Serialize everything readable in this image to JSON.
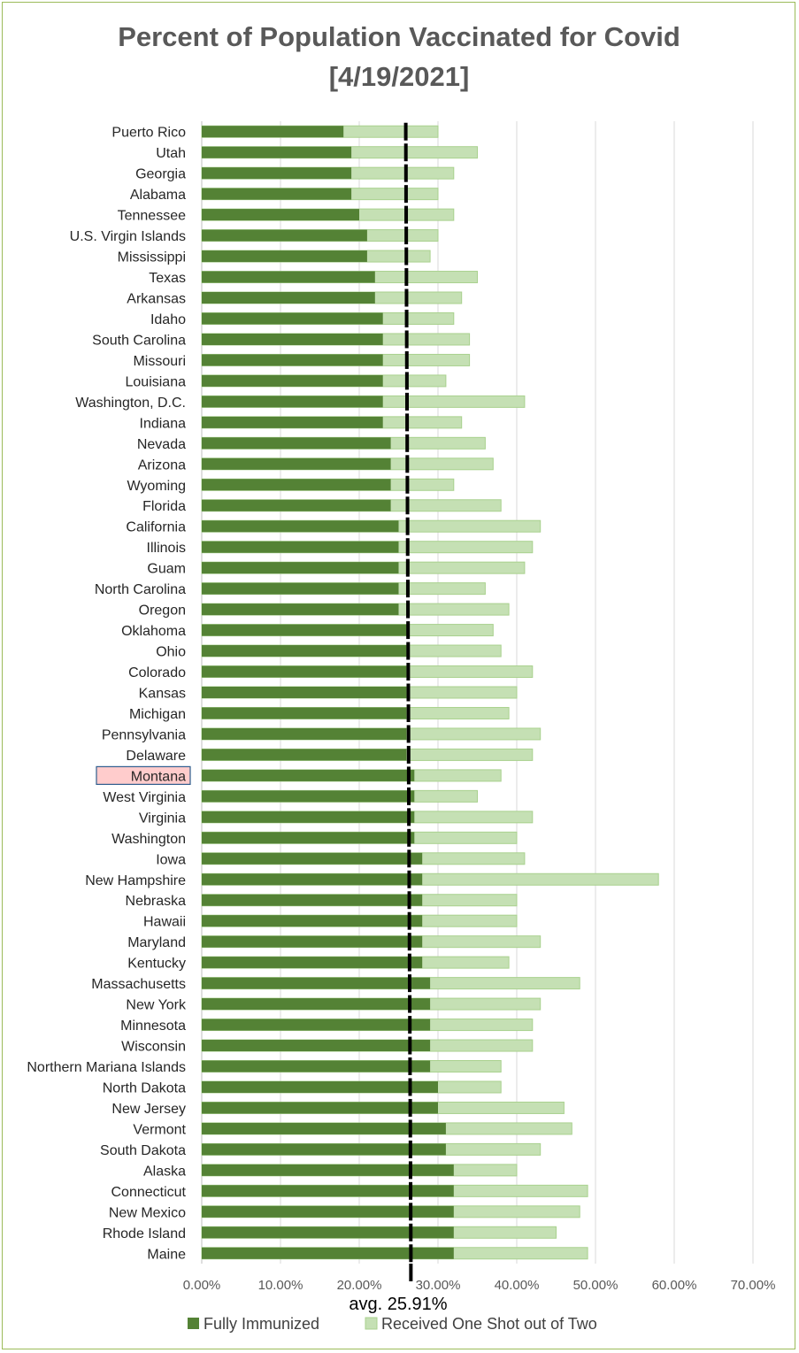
{
  "chart_data": {
    "type": "bar",
    "orientation": "horizontal",
    "stacked": "overlay",
    "title_line1": "Percent of Population Vaccinated for Covid",
    "title_line2": "[4/19/2021]",
    "categories": [
      "Puerto Rico",
      "Utah",
      "Georgia",
      "Alabama",
      "Tennessee",
      "U.S. Virgin Islands",
      "Mississippi",
      "Texas",
      "Arkansas",
      "Idaho",
      "South Carolina",
      "Missouri",
      "Louisiana",
      "Washington, D.C.",
      "Indiana",
      "Nevada",
      "Arizona",
      "Wyoming",
      "Florida",
      "California",
      "Illinois",
      "Guam",
      "North Carolina",
      "Oregon",
      "Oklahoma",
      "Ohio",
      "Colorado",
      "Kansas",
      "Michigan",
      "Pennsylvania",
      "Delaware",
      "Montana",
      "West Virginia",
      "Virginia",
      "Washington",
      "Iowa",
      "New Hampshire",
      "Nebraska",
      "Hawaii",
      "Maryland",
      "Kentucky",
      "Massachusetts",
      "New York",
      "Minnesota",
      "Wisconsin",
      "Northern Mariana Islands",
      "North Dakota",
      "New Jersey",
      "Vermont",
      "South Dakota",
      "Alaska",
      "Connecticut",
      "New Mexico",
      "Rhode Island",
      "Maine"
    ],
    "series": [
      {
        "name": "Fully Immunized",
        "color": "#548235",
        "values": [
          18,
          19,
          19,
          19,
          20,
          21,
          21,
          22,
          22,
          23,
          23,
          23,
          23,
          23,
          23,
          24,
          24,
          24,
          24,
          25,
          25,
          25,
          25,
          25,
          26,
          26,
          26,
          26,
          26,
          26,
          26,
          27,
          27,
          27,
          27,
          28,
          28,
          28,
          28,
          28,
          28,
          29,
          29,
          29,
          29,
          29,
          30,
          30,
          31,
          31,
          32,
          32,
          32,
          32,
          32
        ]
      },
      {
        "name": "Received One Shot out of Two",
        "color": "#c5e0b4",
        "border": "#a9d18e",
        "values": [
          30,
          35,
          32,
          30,
          32,
          30,
          29,
          35,
          33,
          32,
          34,
          34,
          31,
          41,
          33,
          36,
          37,
          32,
          38,
          43,
          42,
          41,
          36,
          39,
          37,
          38,
          42,
          40,
          39,
          43,
          42,
          38,
          35,
          42,
          40,
          41,
          58,
          40,
          40,
          43,
          39,
          48,
          43,
          42,
          42,
          38,
          38,
          46,
          47,
          43,
          40,
          49,
          48,
          45,
          49
        ]
      }
    ],
    "average_value": 25.91,
    "average_label": "avg. 25.91%",
    "highlight_category": "Montana",
    "highlight_color": "#ffcccc",
    "highlight_border": "#2e5d8e",
    "xlim": [
      0,
      70
    ],
    "x_ticks": [
      0,
      10,
      20,
      30,
      40,
      50,
      60,
      70
    ],
    "x_tick_labels": [
      "0.00%",
      "10.00%",
      "20.00%",
      "30.00%",
      "40.00%",
      "50.00%",
      "60.00%",
      "70.00%"
    ],
    "grid": true,
    "legend_position": "bottom"
  }
}
